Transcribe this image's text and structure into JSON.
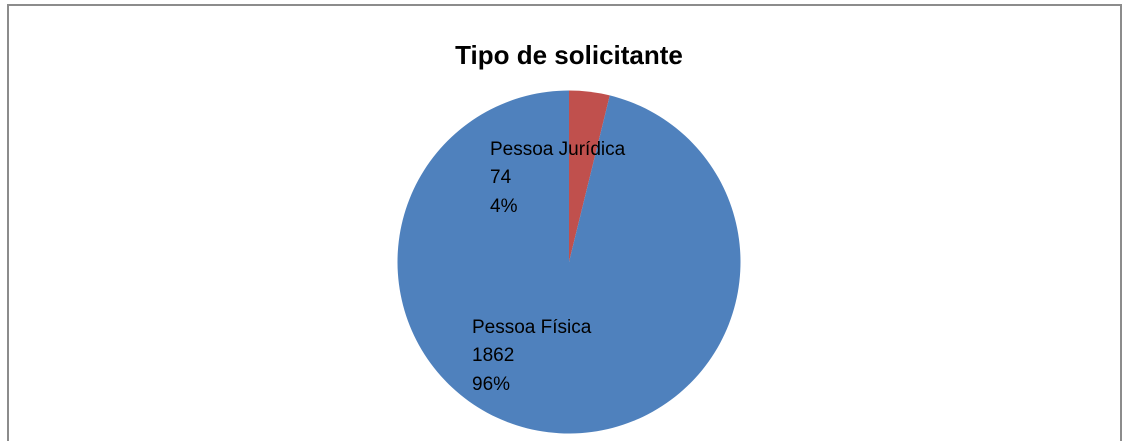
{
  "chart_data": {
    "type": "pie",
    "title": "Tipo de solicitante",
    "categories": [
      "Pessoa Jurídica",
      "Pessoa Física"
    ],
    "values": [
      74,
      1862
    ],
    "percent_labels": [
      "4%",
      "96%"
    ],
    "colors": [
      "#c0504d",
      "#4f81bd"
    ]
  }
}
